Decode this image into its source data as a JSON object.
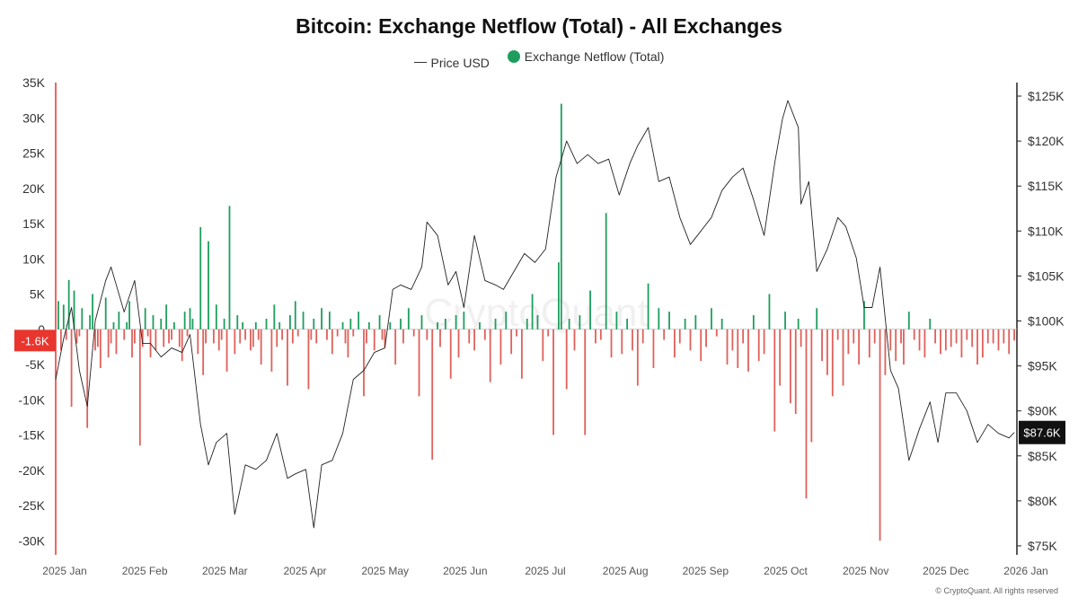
{
  "title": "Bitcoin: Exchange Netflow (Total) - All Exchanges",
  "copyright": "© CryptoQuant. All rights reserved",
  "watermark": "CryptoQuant",
  "legend": [
    {
      "label": "Price USD",
      "type": "line",
      "color": "#333333"
    },
    {
      "label": "Exchange Netflow (Total)",
      "type": "dot",
      "color": "#1e9e5e"
    }
  ],
  "colors": {
    "inflow": "#1e9e5e",
    "outflow": "#e0605a",
    "price": "#222222",
    "highlight": "#e8352e"
  },
  "chart_data": {
    "type": "bar",
    "left_axis": {
      "ticks": [
        35000,
        30000,
        25000,
        20000,
        15000,
        10000,
        5000,
        0,
        -5000,
        -10000,
        -15000,
        -20000,
        -25000,
        -30000
      ],
      "tick_labels": [
        "35K",
        "30K",
        "25K",
        "20K",
        "15K",
        "10K",
        "5K",
        "0",
        "-5K",
        "-10K",
        "-15K",
        "-20K",
        "-25K",
        "-30K"
      ],
      "range": [
        -32000,
        35000
      ]
    },
    "right_axis": {
      "ticks": [
        125000,
        120000,
        115000,
        110000,
        105000,
        100000,
        95000,
        90000,
        85000,
        80000,
        75000
      ],
      "tick_labels": [
        "$125K",
        "$120K",
        "$115K",
        "$110K",
        "$105K",
        "$100K",
        "$95K",
        "$90K",
        "$85K",
        "$80K",
        "$75K"
      ],
      "range": [
        74000,
        126500
      ]
    },
    "x_axis": {
      "labels": [
        "2025 Jan",
        "2025 Feb",
        "2025 Mar",
        "2025 Apr",
        "2025 May",
        "2025 Jun",
        "2025 Jul",
        "2025 Aug",
        "2025 Sep",
        "2025 Oct",
        "2025 Nov",
        "2025 Dec",
        "2026 Jan"
      ],
      "range": [
        "2025-01-01",
        "2026-01-01"
      ]
    },
    "current_netflow_label": "-1.6K",
    "current_netflow": -1600,
    "current_price_label": "$87.6K",
    "current_price": 87600,
    "series": [
      {
        "name": "Exchange Netflow (Total)",
        "kind": "bar",
        "x": [
          "2025-01-02",
          "2025-01-03",
          "2025-01-04",
          "2025-01-05",
          "2025-01-06",
          "2025-01-07",
          "2025-01-08",
          "2025-01-09",
          "2025-01-10",
          "2025-01-11",
          "2025-01-13",
          "2025-01-14",
          "2025-01-15",
          "2025-01-16",
          "2025-01-17",
          "2025-01-18",
          "2025-01-20",
          "2025-01-21",
          "2025-01-22",
          "2025-01-23",
          "2025-01-24",
          "2025-01-25",
          "2025-01-27",
          "2025-01-28",
          "2025-01-29",
          "2025-01-30",
          "2025-01-31",
          "2025-02-02",
          "2025-02-03",
          "2025-02-04",
          "2025-02-05",
          "2025-02-06",
          "2025-02-07",
          "2025-02-08",
          "2025-02-10",
          "2025-02-11",
          "2025-02-12",
          "2025-02-13",
          "2025-02-14",
          "2025-02-15",
          "2025-02-17",
          "2025-02-18",
          "2025-02-19",
          "2025-02-20",
          "2025-02-21",
          "2025-02-22",
          "2025-02-24",
          "2025-02-25",
          "2025-02-26",
          "2025-02-27",
          "2025-02-28",
          "2025-03-02",
          "2025-03-03",
          "2025-03-04",
          "2025-03-05",
          "2025-03-06",
          "2025-03-07",
          "2025-03-08",
          "2025-03-10",
          "2025-03-11",
          "2025-03-12",
          "2025-03-13",
          "2025-03-14",
          "2025-03-16",
          "2025-03-17",
          "2025-03-18",
          "2025-03-19",
          "2025-03-20",
          "2025-03-22",
          "2025-03-24",
          "2025-03-25",
          "2025-03-26",
          "2025-03-27",
          "2025-03-28",
          "2025-03-30",
          "2025-03-31",
          "2025-04-01",
          "2025-04-02",
          "2025-04-03",
          "2025-04-05",
          "2025-04-07",
          "2025-04-08",
          "2025-04-09",
          "2025-04-10",
          "2025-04-12",
          "2025-04-14",
          "2025-04-15",
          "2025-04-16",
          "2025-04-18",
          "2025-04-20",
          "2025-04-21",
          "2025-04-22",
          "2025-04-23",
          "2025-04-24",
          "2025-04-26",
          "2025-04-28",
          "2025-04-29",
          "2025-04-30",
          "2025-05-02",
          "2025-05-04",
          "2025-05-05",
          "2025-05-06",
          "2025-05-08",
          "2025-05-10",
          "2025-05-12",
          "2025-05-13",
          "2025-05-15",
          "2025-05-17",
          "2025-05-19",
          "2025-05-20",
          "2025-05-22",
          "2025-05-24",
          "2025-05-26",
          "2025-05-27",
          "2025-05-29",
          "2025-05-31",
          "2025-06-02",
          "2025-06-03",
          "2025-06-05",
          "2025-06-07",
          "2025-06-09",
          "2025-06-11",
          "2025-06-13",
          "2025-06-15",
          "2025-06-17",
          "2025-06-19",
          "2025-06-21",
          "2025-06-23",
          "2025-06-25",
          "2025-06-27",
          "2025-06-29",
          "2025-07-01",
          "2025-07-03",
          "2025-07-05",
          "2025-07-07",
          "2025-07-09",
          "2025-07-11",
          "2025-07-12",
          "2025-07-14",
          "2025-07-15",
          "2025-07-17",
          "2025-07-19",
          "2025-07-21",
          "2025-07-23",
          "2025-07-25",
          "2025-07-27",
          "2025-07-29",
          "2025-07-31",
          "2025-08-02",
          "2025-08-04",
          "2025-08-06",
          "2025-08-08",
          "2025-08-10",
          "2025-08-12",
          "2025-08-14",
          "2025-08-16",
          "2025-08-18",
          "2025-08-20",
          "2025-08-22",
          "2025-08-24",
          "2025-08-26",
          "2025-08-28",
          "2025-08-30",
          "2025-09-01",
          "2025-09-03",
          "2025-09-05",
          "2025-09-07",
          "2025-09-09",
          "2025-09-11",
          "2025-09-13",
          "2025-09-15",
          "2025-09-17",
          "2025-09-19",
          "2025-09-21",
          "2025-09-23",
          "2025-09-25",
          "2025-09-27",
          "2025-09-29",
          "2025-10-01",
          "2025-10-03",
          "2025-10-05",
          "2025-10-07",
          "2025-10-09",
          "2025-10-10",
          "2025-10-11",
          "2025-10-13",
          "2025-10-15",
          "2025-10-17",
          "2025-10-19",
          "2025-10-21",
          "2025-10-23",
          "2025-10-25",
          "2025-10-27",
          "2025-10-29",
          "2025-10-31",
          "2025-11-02",
          "2025-11-04",
          "2025-11-06",
          "2025-11-08",
          "2025-11-10",
          "2025-11-12",
          "2025-11-14",
          "2025-11-16",
          "2025-11-18",
          "2025-11-19",
          "2025-11-21",
          "2025-11-23",
          "2025-11-25",
          "2025-11-27",
          "2025-11-29",
          "2025-12-01",
          "2025-12-03",
          "2025-12-05",
          "2025-12-07",
          "2025-12-09",
          "2025-12-11",
          "2025-12-13",
          "2025-12-15",
          "2025-12-17",
          "2025-12-19",
          "2025-12-21",
          "2025-12-23",
          "2025-12-25",
          "2025-12-27",
          "2025-12-29",
          "2025-12-31"
        ],
        "values": [
          4000,
          -3000,
          3500,
          -1500,
          7000,
          -11000,
          5500,
          -2000,
          -1000,
          3000,
          -14000,
          2000,
          5000,
          -3000,
          -2500,
          -5500,
          4500,
          -4000,
          -2000,
          1000,
          -3500,
          2500,
          -1500,
          1000,
          4000,
          -4000,
          -2000,
          -16500,
          -2500,
          3000,
          -1000,
          -4000,
          2000,
          -3000,
          1500,
          -2500,
          3500,
          -2000,
          -1500,
          1000,
          -2500,
          -4500,
          2500,
          -1000,
          3000,
          1500,
          -3500,
          14500,
          -6500,
          -2000,
          12500,
          -2000,
          3500,
          -3000,
          -1500,
          1500,
          -6000,
          17500,
          -3500,
          2000,
          -2000,
          1000,
          -1500,
          -3000,
          -2500,
          1000,
          -1500,
          -5000,
          1500,
          -6000,
          3500,
          -2500,
          1000,
          -1500,
          -8000,
          2000,
          -2000,
          4000,
          -1000,
          2500,
          -8500,
          -1500,
          1500,
          -2000,
          3000,
          -1500,
          2500,
          -3500,
          -1000,
          1000,
          -2000,
          -4000,
          1500,
          -1000,
          2500,
          -9500,
          -2000,
          1000,
          -3000,
          2000,
          -1500,
          -2500,
          1000,
          -5000,
          1500,
          -2000,
          3000,
          -1000,
          -9500,
          2000,
          -1500,
          -18500,
          1000,
          -2500,
          1500,
          -7000,
          2000,
          -4000,
          2500,
          -2000,
          -3000,
          1000,
          -1500,
          -7500,
          1500,
          -5000,
          2500,
          -3500,
          -1000,
          -7000,
          1500,
          5000,
          2000,
          -4500,
          -1000,
          -15000,
          9500,
          32000,
          -8500,
          1500,
          -3000,
          2000,
          -15000,
          5500,
          -2000,
          -1500,
          16500,
          -4000,
          2500,
          -3500,
          1500,
          -3000,
          -8000,
          -2000,
          6500,
          -5500,
          3000,
          -1500,
          2500,
          -4000,
          -2000,
          1500,
          -3000,
          2000,
          -4500,
          -2500,
          3000,
          -1000,
          1500,
          -5000,
          -3000,
          -5500,
          -2000,
          -6000,
          2000,
          -4500,
          -3500,
          5000,
          -14500,
          -8000,
          2500,
          -10500,
          -12000,
          1500,
          -2500,
          -24000,
          -16000,
          3000,
          -4500,
          -6500,
          -9500,
          -1500,
          -8000,
          -3500,
          -2000,
          -5000,
          4000,
          -4000,
          -2000,
          -30000,
          -6500,
          -3000,
          -4500,
          -2000,
          -5000,
          2500,
          -1500,
          -3000,
          -4000,
          1500,
          -2000,
          -3500,
          -3000,
          -2500,
          -2000,
          -4000,
          -1500,
          -2500,
          -5000,
          -4000,
          -2000,
          -2000,
          -3000,
          -2000,
          -3500,
          -1600
        ]
      },
      {
        "name": "Price USD",
        "kind": "line",
        "x": [
          "2025-01-01",
          "2025-01-04",
          "2025-01-07",
          "2025-01-10",
          "2025-01-13",
          "2025-01-16",
          "2025-01-20",
          "2025-01-22",
          "2025-01-27",
          "2025-01-31",
          "2025-02-03",
          "2025-02-06",
          "2025-02-10",
          "2025-02-14",
          "2025-02-18",
          "2025-02-21",
          "2025-02-25",
          "2025-02-28",
          "2025-03-03",
          "2025-03-07",
          "2025-03-10",
          "2025-03-14",
          "2025-03-18",
          "2025-03-22",
          "2025-03-26",
          "2025-03-30",
          "2025-04-02",
          "2025-04-06",
          "2025-04-09",
          "2025-04-12",
          "2025-04-16",
          "2025-04-20",
          "2025-04-24",
          "2025-04-28",
          "2025-05-02",
          "2025-05-06",
          "2025-05-09",
          "2025-05-12",
          "2025-05-16",
          "2025-05-20",
          "2025-05-22",
          "2025-05-26",
          "2025-05-30",
          "2025-06-02",
          "2025-06-05",
          "2025-06-09",
          "2025-06-13",
          "2025-06-17",
          "2025-06-20",
          "2025-06-24",
          "2025-06-28",
          "2025-07-02",
          "2025-07-06",
          "2025-07-10",
          "2025-07-14",
          "2025-07-18",
          "2025-07-22",
          "2025-07-26",
          "2025-07-30",
          "2025-08-03",
          "2025-08-07",
          "2025-08-10",
          "2025-08-14",
          "2025-08-18",
          "2025-08-22",
          "2025-08-26",
          "2025-08-30",
          "2025-09-03",
          "2025-09-07",
          "2025-09-11",
          "2025-09-15",
          "2025-09-19",
          "2025-09-23",
          "2025-09-27",
          "2025-10-01",
          "2025-10-04",
          "2025-10-06",
          "2025-10-10",
          "2025-10-11",
          "2025-10-14",
          "2025-10-17",
          "2025-10-21",
          "2025-10-25",
          "2025-10-28",
          "2025-11-01",
          "2025-11-04",
          "2025-11-07",
          "2025-11-10",
          "2025-11-14",
          "2025-11-17",
          "2025-11-21",
          "2025-11-25",
          "2025-11-29",
          "2025-12-02",
          "2025-12-05",
          "2025-12-09",
          "2025-12-13",
          "2025-12-17",
          "2025-12-21",
          "2025-12-25",
          "2025-12-29",
          "2025-12-31"
        ],
        "values": [
          93500,
          98000,
          101500,
          94500,
          90500,
          100000,
          104500,
          106000,
          101000,
          104500,
          97500,
          97500,
          96000,
          97000,
          96500,
          98500,
          88500,
          84000,
          86500,
          87500,
          78500,
          84000,
          83500,
          84500,
          87500,
          82500,
          83000,
          83500,
          77000,
          84000,
          84500,
          87500,
          93500,
          94500,
          96500,
          97000,
          103500,
          104000,
          103500,
          106000,
          111000,
          109500,
          104000,
          105500,
          101500,
          109500,
          104500,
          104000,
          103500,
          105500,
          107500,
          106500,
          108000,
          116000,
          120000,
          117500,
          118500,
          117500,
          118000,
          114000,
          117500,
          119500,
          121500,
          115500,
          116000,
          111500,
          108500,
          110000,
          111500,
          114500,
          116000,
          117000,
          113500,
          109500,
          117500,
          122500,
          124500,
          121500,
          113000,
          115500,
          105500,
          108000,
          111500,
          110500,
          107000,
          101500,
          101500,
          106000,
          94500,
          92500,
          84500,
          88000,
          91000,
          86500,
          92000,
          92000,
          90000,
          86500,
          88500,
          87500,
          87000,
          87600
        ]
      }
    ]
  }
}
